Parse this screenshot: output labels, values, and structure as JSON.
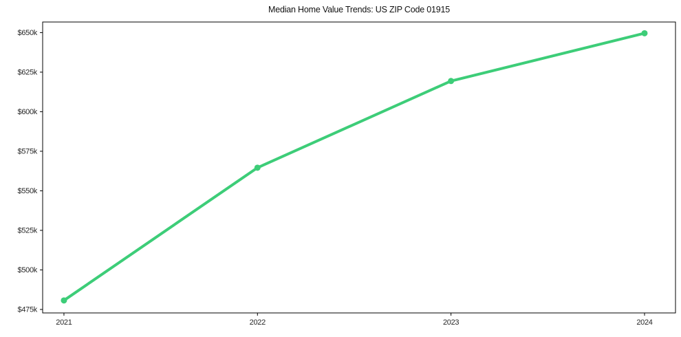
{
  "chart_data": {
    "type": "line",
    "title": "Median Home Value Trends: US ZIP Code 01915",
    "x": [
      2021,
      2022,
      2023,
      2024
    ],
    "values": [
      480700,
      564600,
      619400,
      649600
    ],
    "series_name": "Median Home Value",
    "x_ticks": [
      {
        "value": 2021,
        "label": "2021"
      },
      {
        "value": 2022,
        "label": "2022"
      },
      {
        "value": 2023,
        "label": "2023"
      },
      {
        "value": 2024,
        "label": "2024"
      }
    ],
    "y_ticks": [
      {
        "value": 475000,
        "label": "$475k"
      },
      {
        "value": 500000,
        "label": "$500k"
      },
      {
        "value": 525000,
        "label": "$525k"
      },
      {
        "value": 550000,
        "label": "$550k"
      },
      {
        "value": 575000,
        "label": "$575k"
      },
      {
        "value": 600000,
        "label": "$600k"
      },
      {
        "value": 625000,
        "label": "$625k"
      },
      {
        "value": 650000,
        "label": "$650k"
      }
    ],
    "xlim": [
      2020.89,
      2024.16
    ],
    "ylim": [
      472800,
      656700
    ],
    "xlabel": "",
    "ylabel": "",
    "grid": false,
    "legend": "none",
    "marker": "circle"
  },
  "colors": {
    "line": "#3dcd78",
    "marker": "#3dcd78",
    "spine": "#000000",
    "tick_text": "#262626",
    "title_text": "#111111",
    "background": "#ffffff"
  }
}
